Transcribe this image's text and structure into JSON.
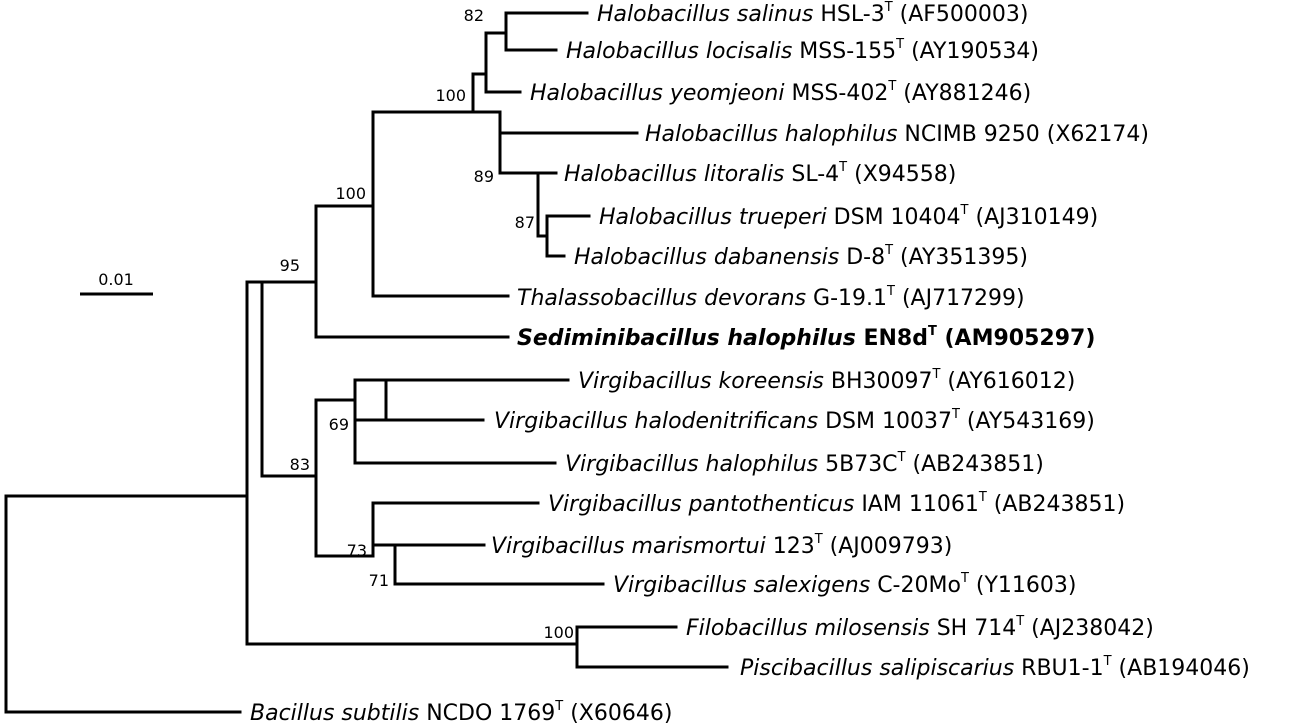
{
  "scale_label": "0.01",
  "taxa": [
    {
      "id": "t1",
      "italic": "Halobacillus salinus",
      "strain": "HSL-3",
      "type": true,
      "acc": "(AF500003)",
      "bold": false
    },
    {
      "id": "t2",
      "italic": "Halobacillus locisalis",
      "strain": "MSS-155",
      "type": true,
      "acc": "(AY190534)",
      "bold": false
    },
    {
      "id": "t3",
      "italic": "Halobacillus yeomjeoni",
      "strain": "MSS-402",
      "type": true,
      "acc": "(AY881246)",
      "bold": false
    },
    {
      "id": "t4",
      "italic": "Halobacillus halophilus",
      "strain": "NCIMB 9250",
      "type": false,
      "acc": "(X62174)",
      "bold": false
    },
    {
      "id": "t5",
      "italic": "Halobacillus litoralis",
      "strain": "SL-4",
      "type": true,
      "acc": "(X94558)",
      "bold": false
    },
    {
      "id": "t6",
      "italic": "Halobacillus trueperi",
      "strain": "DSM 10404",
      "type": true,
      "acc": "(AJ310149)",
      "bold": false
    },
    {
      "id": "t7",
      "italic": "Halobacillus dabanensis",
      "strain": "D-8",
      "type": true,
      "acc": "(AY351395)",
      "bold": false
    },
    {
      "id": "t8",
      "italic": "Thalassobacillus devorans",
      "strain": "G-19.1",
      "type": true,
      "acc": "(AJ717299)",
      "bold": false
    },
    {
      "id": "t9",
      "italic": "Sediminibacillus halophilus",
      "strain": "EN8d",
      "type": true,
      "acc": "(AM905297)",
      "bold": true
    },
    {
      "id": "t10",
      "italic": "Virgibacillus koreensis",
      "strain": "BH30097",
      "type": true,
      "acc": "(AY616012)",
      "bold": false
    },
    {
      "id": "t11",
      "italic": "Virgibacillus halodenitrificans",
      "strain": "DSM 10037",
      "type": true,
      "acc": "(AY543169)",
      "bold": false
    },
    {
      "id": "t12",
      "italic": "Virgibacillus halophilus",
      "strain": "5B73C",
      "type": true,
      "acc": "(AB243851)",
      "bold": false
    },
    {
      "id": "t13",
      "italic": "Virgibacillus pantothenticus",
      "strain": "IAM 11061",
      "type": true,
      "acc": "(AB243851)",
      "bold": false
    },
    {
      "id": "t14",
      "italic": "Virgibacillus marismortui",
      "strain": "123",
      "type": true,
      "acc": "(AJ009793)",
      "bold": false
    },
    {
      "id": "t15",
      "italic": "Virgibacillus salexigens",
      "strain": "C-20Mo",
      "type": true,
      "acc": "(Y11603)",
      "bold": false
    },
    {
      "id": "t16",
      "italic": "Filobacillus milosensis",
      "strain": "SH 714",
      "type": true,
      "acc": "(AJ238042)",
      "bold": false
    },
    {
      "id": "t17",
      "italic": "Piscibacillus salipiscarius",
      "strain": "RBU1-1",
      "type": true,
      "acc": "(AB194046)",
      "bold": false
    },
    {
      "id": "t18",
      "italic": "Bacillus subtilis",
      "strain": "NCDO 1769",
      "type": true,
      "acc": "(X60646)",
      "bold": false
    }
  ],
  "type_marker": "T",
  "bootstrap": [
    {
      "id": "b82",
      "value": "82"
    },
    {
      "id": "b100a",
      "value": "100"
    },
    {
      "id": "b89",
      "value": "89"
    },
    {
      "id": "b87",
      "value": "87"
    },
    {
      "id": "b100b",
      "value": "100"
    },
    {
      "id": "b95",
      "value": "95"
    },
    {
      "id": "b69",
      "value": "69"
    },
    {
      "id": "b83",
      "value": "83"
    },
    {
      "id": "b73",
      "value": "73"
    },
    {
      "id": "b71",
      "value": "71"
    },
    {
      "id": "b100c",
      "value": "100"
    }
  ]
}
